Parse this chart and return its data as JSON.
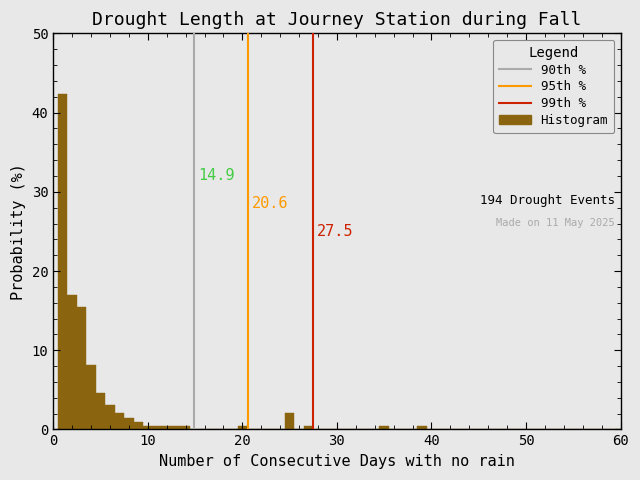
{
  "title": "Drought Length at Journey Station during Fall",
  "xlabel": "Number of Consecutive Days with no rain",
  "ylabel": "Probability (%)",
  "xlim": [
    0,
    60
  ],
  "ylim": [
    0,
    50
  ],
  "xticks": [
    0,
    10,
    20,
    30,
    40,
    50,
    60
  ],
  "yticks": [
    0,
    10,
    20,
    30,
    40,
    50
  ],
  "bar_color": "#8B6410",
  "bar_edgecolor": "#8B6410",
  "background_color": "#e8e8e8",
  "percentile_90": 14.9,
  "percentile_95": 20.6,
  "percentile_99": 27.5,
  "percentile_90_line_color": "#aaaaaa",
  "percentile_95_line_color": "#ff9900",
  "percentile_99_line_color": "#cc2200",
  "percentile_90_text_color": "#44cc44",
  "percentile_95_text_color": "#ff9900",
  "percentile_99_text_color": "#cc2200",
  "drought_events": 194,
  "made_on_text": "Made on 11 May 2025",
  "made_on_color": "#aaaaaa",
  "bin_probabilities": [
    42.3,
    17.0,
    15.5,
    8.2,
    4.6,
    3.1,
    2.1,
    1.5,
    1.0,
    0.5,
    0.5,
    0.5,
    0.5,
    0.5,
    0.0,
    0.0,
    0.0,
    0.0,
    0.0,
    0.5,
    0.0,
    0.0,
    0.0,
    0.0,
    2.1,
    0.0,
    0.5,
    0.0,
    0.0,
    0.0,
    0.0,
    0.0,
    0.0,
    0.0,
    0.5,
    0.0,
    0.0,
    0.0,
    0.5,
    0.0,
    0.0,
    0.0,
    0.0,
    0.0,
    0.0,
    0.0,
    0.0,
    0.0,
    0.0,
    0.0,
    0.0,
    0.0,
    0.0,
    0.0,
    0.0,
    0.0,
    0.0,
    0.0,
    0.0,
    0.0
  ]
}
